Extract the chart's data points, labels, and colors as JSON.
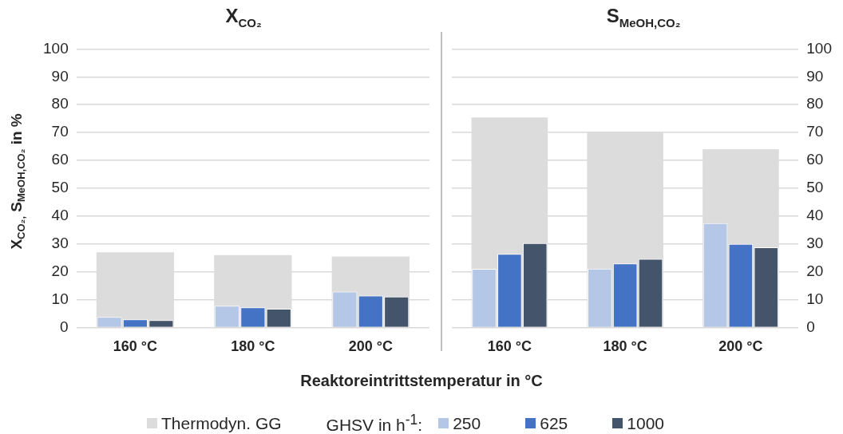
{
  "chart_data": [
    {
      "type": "bar",
      "title": "X$_{CO₂}$",
      "ylabel": "X$_{CO₂,}$ S$_{MeOH,CO₂}$ in %",
      "xlabel": "Reaktoreintrittstemperatur in °C",
      "legend_title": "GHSV in h$^{-1}$:",
      "legend": "bottom",
      "grid": "y",
      "categories": [
        "160 °C",
        "180 °C",
        "200 °C"
      ],
      "ylim": [
        0,
        100
      ],
      "yticks": [
        0,
        10,
        20,
        30,
        40,
        50,
        60,
        70,
        80,
        90,
        100
      ],
      "series": [
        {
          "name": "Thermodyn. GG",
          "color": "#dcdcdc",
          "values": [
            27,
            26,
            25.5
          ]
        },
        {
          "name": "250",
          "color": "#b4c7e7",
          "values": [
            3.8,
            7.8,
            12.9
          ]
        },
        {
          "name": "625",
          "color": "#4472c4",
          "values": [
            2.9,
            7.2,
            11.4
          ]
        },
        {
          "name": "1000",
          "color": "#44546a",
          "values": [
            2.6,
            6.7,
            11.1
          ]
        }
      ]
    },
    {
      "type": "bar",
      "title": "S$_{MeOH,CO₂}$",
      "grid": "y",
      "categories": [
        "160 °C",
        "180 °C",
        "200 °C"
      ],
      "ylim": [
        0,
        100
      ],
      "yticks": [
        0,
        10,
        20,
        30,
        40,
        50,
        60,
        70,
        80,
        90,
        100
      ],
      "series": [
        {
          "color": "#dcdcdc",
          "values": [
            75.4,
            70,
            64
          ]
        },
        {
          "color": "#b4c7e7",
          "values": [
            21,
            21.1,
            37.4
          ]
        },
        {
          "color": "#4472c4",
          "values": [
            26.4,
            23,
            30
          ]
        },
        {
          "color": "#44546a",
          "values": [
            30.3,
            24.6,
            28.8
          ]
        }
      ]
    }
  ]
}
